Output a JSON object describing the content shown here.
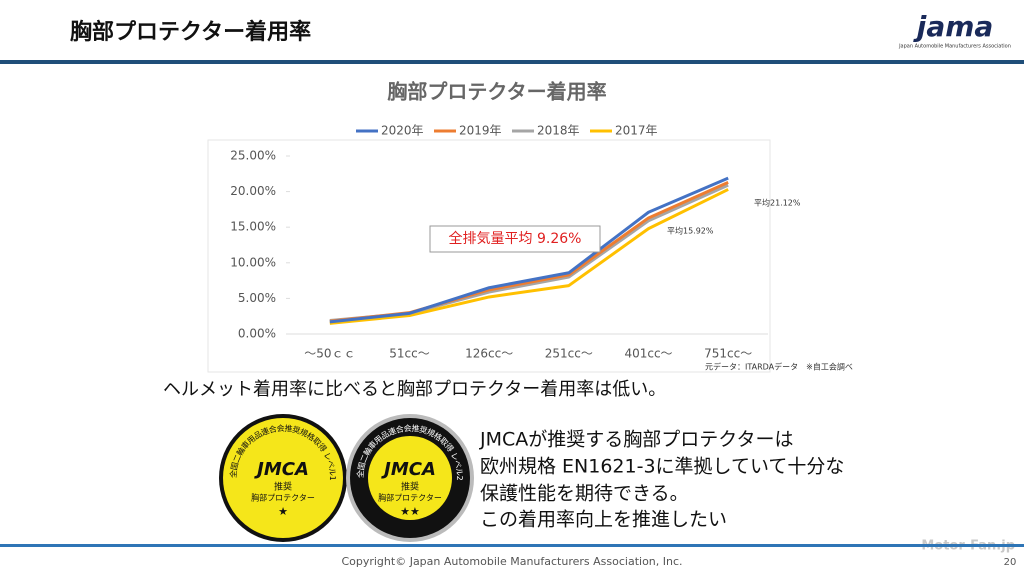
{
  "slide": {
    "title": "胸部プロテクター着用率",
    "logo": "jama",
    "logo_sub": "Japan Automobile Manufacturers Association"
  },
  "chart_data": {
    "type": "line",
    "title": "胸部プロテクター着用率",
    "categories": [
      "～50ｃｃ",
      "51cc～",
      "126cc～",
      "251cc～",
      "401cc～",
      "751cc～"
    ],
    "series": [
      {
        "name": "2020年",
        "color": "#4472c4",
        "values": [
          1.7,
          2.9,
          6.5,
          8.6,
          17.1,
          21.9
        ]
      },
      {
        "name": "2019年",
        "color": "#ed7d31",
        "values": [
          1.8,
          3.0,
          6.2,
          8.3,
          16.3,
          21.3
        ]
      },
      {
        "name": "2018年",
        "color": "#a5a5a5",
        "values": [
          1.9,
          2.9,
          5.9,
          8.0,
          15.9,
          20.9
        ]
      },
      {
        "name": "2017年",
        "color": "#ffc000",
        "values": [
          1.5,
          2.6,
          5.2,
          6.8,
          14.8,
          20.3
        ]
      }
    ],
    "ylim": [
      0,
      25
    ],
    "yticks": [
      {
        "value": 0,
        "label": "0.00%"
      },
      {
        "value": 5,
        "label": "5.00%"
      },
      {
        "value": 10,
        "label": "10.00%"
      },
      {
        "value": 15,
        "label": "15.00%"
      },
      {
        "value": 20,
        "label": "20.00%"
      },
      {
        "value": 25,
        "label": "25.00%"
      }
    ],
    "legend": "top",
    "annotations": [
      "全排気量平均 9.26%",
      "平均21.12%",
      "平均15.92%"
    ],
    "source": "元データ：ITARDAデータ　※自工会調べ"
  },
  "statement": "ヘルメット着用率に比べると胸部プロテクター着用率は低い。",
  "badges": [
    {
      "ring": "全国二輪車用品連合会推奨規格取得 レベル1",
      "brand": "JMCA",
      "label1": "推奨",
      "label2": "胸部プロテクター",
      "stars": "★"
    },
    {
      "ring": "全国二輪車用品連合会推奨規格取得 レベル2",
      "brand": "JMCA",
      "label1": "推奨",
      "label2": "胸部プロテクター",
      "stars": "★★"
    }
  ],
  "body_lines": [
    "JMCAが推奨する胸部プロテクターは",
    "欧州規格 EN1621-3に準拠していて十分な",
    "保護性能を期待できる。",
    "この着用率向上を推進したい"
  ],
  "footer": {
    "copyright": "Copyright© Japan Automobile Manufacturers Association, Inc.",
    "page": "20"
  },
  "watermark": "Motor-Fan.jp"
}
